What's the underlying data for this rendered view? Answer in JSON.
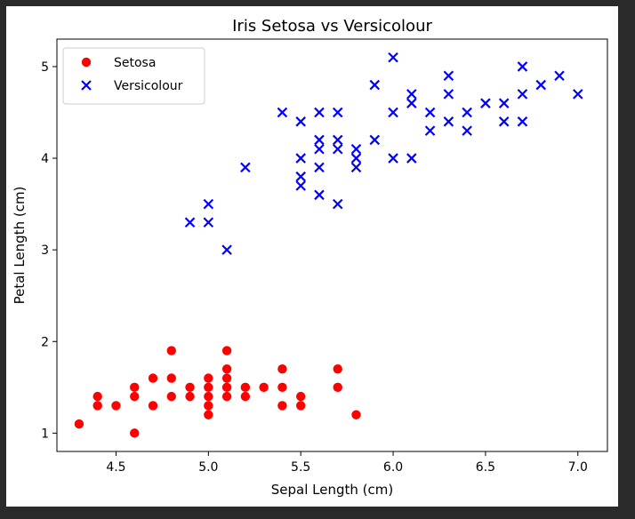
{
  "chart_data": {
    "type": "scatter",
    "title": "Iris Setosa vs Versicolour",
    "xlabel": "Sepal Length (cm)",
    "ylabel": "Petal Length (cm)",
    "xlim": [
      4.18,
      7.16
    ],
    "ylim": [
      0.8,
      5.3
    ],
    "xticks": [
      4.5,
      5.0,
      5.5,
      6.0,
      6.5,
      7.0
    ],
    "yticks": [
      1,
      2,
      3,
      4,
      5
    ],
    "grid": false,
    "legend": "top-left",
    "series": [
      {
        "name": "Setosa",
        "marker": "circle",
        "color": "#ff0000",
        "points": [
          [
            4.3,
            1.1
          ],
          [
            4.4,
            1.4
          ],
          [
            4.4,
            1.3
          ],
          [
            4.5,
            1.3
          ],
          [
            4.6,
            1.0
          ],
          [
            4.6,
            1.4
          ],
          [
            4.6,
            1.5
          ],
          [
            4.7,
            1.6
          ],
          [
            4.7,
            1.3
          ],
          [
            4.8,
            1.9
          ],
          [
            4.8,
            1.6
          ],
          [
            4.8,
            1.4
          ],
          [
            4.9,
            1.5
          ],
          [
            4.9,
            1.4
          ],
          [
            5.0,
            1.6
          ],
          [
            5.0,
            1.5
          ],
          [
            5.0,
            1.4
          ],
          [
            5.0,
            1.3
          ],
          [
            5.0,
            1.2
          ],
          [
            5.1,
            1.9
          ],
          [
            5.1,
            1.7
          ],
          [
            5.1,
            1.6
          ],
          [
            5.1,
            1.5
          ],
          [
            5.1,
            1.4
          ],
          [
            5.2,
            1.5
          ],
          [
            5.2,
            1.4
          ],
          [
            5.3,
            1.5
          ],
          [
            5.4,
            1.7
          ],
          [
            5.4,
            1.5
          ],
          [
            5.4,
            1.3
          ],
          [
            5.5,
            1.4
          ],
          [
            5.5,
            1.3
          ],
          [
            5.7,
            1.7
          ],
          [
            5.7,
            1.5
          ],
          [
            5.8,
            1.2
          ]
        ]
      },
      {
        "name": "Versicolour",
        "marker": "x",
        "color": "#0000ff",
        "points": [
          [
            4.9,
            3.3
          ],
          [
            5.0,
            3.5
          ],
          [
            5.0,
            3.3
          ],
          [
            5.1,
            3.0
          ],
          [
            5.2,
            3.9
          ],
          [
            5.4,
            4.5
          ],
          [
            5.5,
            4.4
          ],
          [
            5.5,
            4.0
          ],
          [
            5.5,
            3.8
          ],
          [
            5.5,
            3.7
          ],
          [
            5.6,
            4.5
          ],
          [
            5.6,
            4.2
          ],
          [
            5.6,
            4.1
          ],
          [
            5.6,
            3.9
          ],
          [
            5.6,
            3.6
          ],
          [
            5.7,
            4.5
          ],
          [
            5.7,
            4.2
          ],
          [
            5.7,
            4.1
          ],
          [
            5.7,
            3.5
          ],
          [
            5.8,
            4.1
          ],
          [
            5.8,
            4.0
          ],
          [
            5.8,
            3.9
          ],
          [
            5.9,
            4.8
          ],
          [
            5.9,
            4.2
          ],
          [
            6.0,
            5.1
          ],
          [
            6.0,
            4.5
          ],
          [
            6.0,
            4.0
          ],
          [
            6.1,
            4.7
          ],
          [
            6.1,
            4.6
          ],
          [
            6.1,
            4.0
          ],
          [
            6.2,
            4.5
          ],
          [
            6.2,
            4.3
          ],
          [
            6.3,
            4.9
          ],
          [
            6.3,
            4.7
          ],
          [
            6.3,
            4.4
          ],
          [
            6.4,
            4.5
          ],
          [
            6.4,
            4.3
          ],
          [
            6.5,
            4.6
          ],
          [
            6.6,
            4.6
          ],
          [
            6.6,
            4.4
          ],
          [
            6.7,
            5.0
          ],
          [
            6.7,
            4.7
          ],
          [
            6.7,
            4.4
          ],
          [
            6.8,
            4.8
          ],
          [
            6.9,
            4.9
          ],
          [
            7.0,
            4.7
          ]
        ]
      }
    ]
  }
}
